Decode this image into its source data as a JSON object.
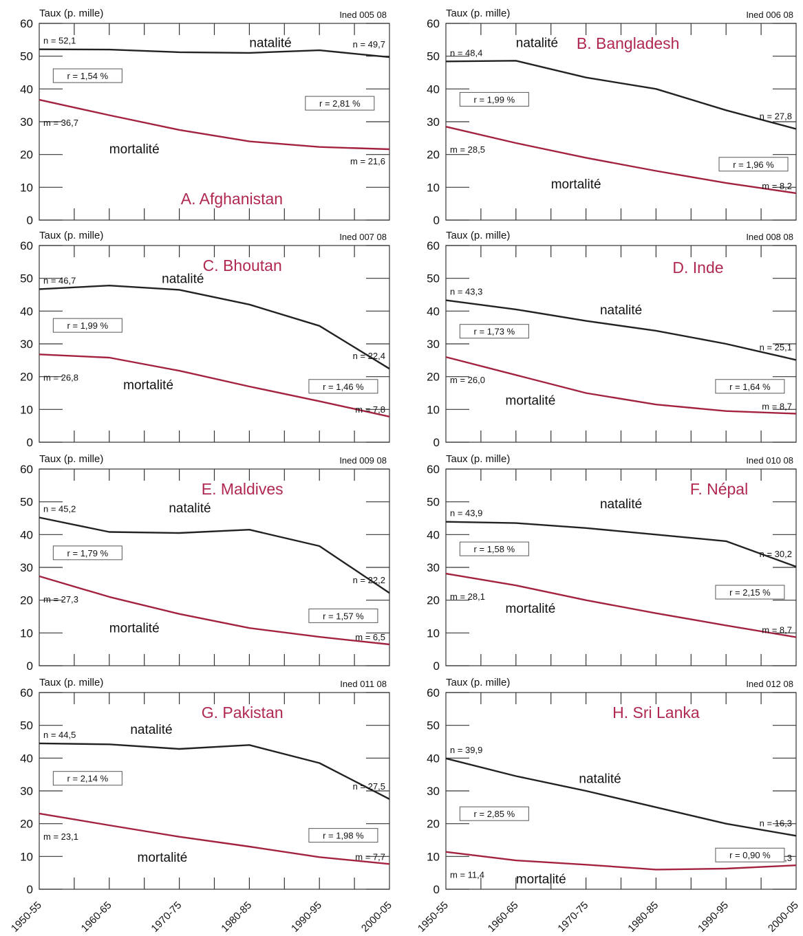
{
  "chart_data": [
    {
      "type": "line",
      "title": "A. Afghanistan",
      "ylabel": "Taux (p. mille)",
      "source": "Ined 005 08",
      "categories": [
        "1950-55",
        "1960-65",
        "1970-75",
        "1980-85",
        "1990-95",
        "2000-05"
      ],
      "ylim": [
        0,
        60
      ],
      "yticks": [
        0,
        10,
        20,
        30,
        40,
        50,
        60
      ],
      "series": [
        {
          "name": "natalité",
          "values": [
            52.1,
            52.0,
            51.2,
            51.0,
            51.8,
            49.7
          ],
          "color": "#222222"
        },
        {
          "name": "mortalité",
          "values": [
            36.7,
            32.0,
            27.5,
            24.0,
            22.3,
            21.6
          ],
          "color": "#a3223f"
        }
      ],
      "annotations": {
        "n_start": "n = 52,1",
        "n_end": "n = 49,7",
        "m_start": "m = 36,7",
        "m_end": "m = 21,6",
        "r_left": "r = 1,54 %",
        "r_right": "r = 2,81 %"
      }
    },
    {
      "type": "line",
      "title": "B. Bangladesh",
      "ylabel": "Taux (p. mille)",
      "source": "Ined 006 08",
      "categories": [
        "1950-55",
        "1960-65",
        "1970-75",
        "1980-85",
        "1990-95",
        "2000-05"
      ],
      "ylim": [
        0,
        60
      ],
      "yticks": [
        0,
        10,
        20,
        30,
        40,
        50,
        60
      ],
      "series": [
        {
          "name": "natalité",
          "values": [
            48.4,
            48.6,
            43.5,
            40.0,
            33.5,
            27.8
          ],
          "color": "#222222"
        },
        {
          "name": "mortalité",
          "values": [
            28.5,
            23.5,
            19.0,
            15.0,
            11.3,
            8.2
          ],
          "color": "#a3223f"
        }
      ],
      "annotations": {
        "n_start": "n = 48,4",
        "n_end": "n = 27,8",
        "m_start": "m = 28,5",
        "m_end": "m = 8,2",
        "r_left": "r = 1,99 %",
        "r_right": "r = 1,96 %"
      }
    },
    {
      "type": "line",
      "title": "C. Bhoutan",
      "ylabel": "Taux (p. mille)",
      "source": "Ined 007 08",
      "categories": [
        "1950-55",
        "1960-65",
        "1970-75",
        "1980-85",
        "1990-95",
        "2000-05"
      ],
      "ylim": [
        0,
        60
      ],
      "yticks": [
        0,
        10,
        20,
        30,
        40,
        50,
        60
      ],
      "series": [
        {
          "name": "natalité",
          "values": [
            46.7,
            47.8,
            46.5,
            42.0,
            35.5,
            22.4
          ],
          "color": "#222222"
        },
        {
          "name": "mortalité",
          "values": [
            26.8,
            25.8,
            21.8,
            17.0,
            12.5,
            7.8
          ],
          "color": "#a3223f"
        }
      ],
      "annotations": {
        "n_start": "n = 46,7",
        "n_end": "n = 22,4",
        "m_start": "m = 26,8",
        "m_end": "m = 7,8",
        "r_left": "r = 1,99 %",
        "r_right": "r = 1,46 %"
      }
    },
    {
      "type": "line",
      "title": "D. Inde",
      "ylabel": "Taux (p. mille)",
      "source": "Ined 008 08",
      "categories": [
        "1950-55",
        "1960-65",
        "1970-75",
        "1980-85",
        "1990-95",
        "2000-05"
      ],
      "ylim": [
        0,
        60
      ],
      "yticks": [
        0,
        10,
        20,
        30,
        40,
        50,
        60
      ],
      "series": [
        {
          "name": "natalité",
          "values": [
            43.3,
            40.5,
            37.0,
            34.0,
            30.0,
            25.1
          ],
          "color": "#222222"
        },
        {
          "name": "mortalité",
          "values": [
            26.0,
            20.5,
            15.0,
            11.5,
            9.5,
            8.7
          ],
          "color": "#a3223f"
        }
      ],
      "annotations": {
        "n_start": "n = 43,3",
        "n_end": "n = 25,1",
        "m_start": "m = 26,0",
        "m_end": "m = 8,7",
        "r_left": "r = 1,73 %",
        "r_right": "r = 1,64 %"
      }
    },
    {
      "type": "line",
      "title": "E. Maldives",
      "ylabel": "Taux (p. mille)",
      "source": "Ined 009 08",
      "categories": [
        "1950-55",
        "1960-65",
        "1970-75",
        "1980-85",
        "1990-95",
        "2000-05"
      ],
      "ylim": [
        0,
        60
      ],
      "yticks": [
        0,
        10,
        20,
        30,
        40,
        50,
        60
      ],
      "series": [
        {
          "name": "natalité",
          "values": [
            45.2,
            40.8,
            40.5,
            41.5,
            36.5,
            22.2
          ],
          "color": "#222222"
        },
        {
          "name": "mortalité",
          "values": [
            27.3,
            21.0,
            15.8,
            11.5,
            8.8,
            6.5
          ],
          "color": "#a3223f"
        }
      ],
      "annotations": {
        "n_start": "n = 45,2",
        "n_end": "n = 22,2",
        "m_start": "m = 27,3",
        "m_end": "m = 6,5",
        "r_left": "r = 1,79 %",
        "r_right": "r = 1,57 %"
      }
    },
    {
      "type": "line",
      "title": "F. Népal",
      "ylabel": "Taux (p. mille)",
      "source": "Ined 010 08",
      "categories": [
        "1950-55",
        "1960-65",
        "1970-75",
        "1980-85",
        "1990-95",
        "2000-05"
      ],
      "ylim": [
        0,
        60
      ],
      "yticks": [
        0,
        10,
        20,
        30,
        40,
        50,
        60
      ],
      "series": [
        {
          "name": "natalité",
          "values": [
            43.9,
            43.5,
            42.0,
            40.0,
            38.0,
            30.2
          ],
          "color": "#222222"
        },
        {
          "name": "mortalité",
          "values": [
            28.1,
            24.5,
            20.0,
            16.0,
            12.3,
            8.7
          ],
          "color": "#a3223f"
        }
      ],
      "annotations": {
        "n_start": "n = 43,9",
        "n_end": "n = 30,2",
        "m_start": "m = 28,1",
        "m_end": "m = 8,7",
        "r_left": "r = 1,58 %",
        "r_right": "r = 2,15 %"
      }
    },
    {
      "type": "line",
      "title": "G. Pakistan",
      "ylabel": "Taux (p. mille)",
      "source": "Ined 011 08",
      "categories": [
        "1950-55",
        "1960-65",
        "1970-75",
        "1980-85",
        "1990-95",
        "2000-05"
      ],
      "ylim": [
        0,
        60
      ],
      "yticks": [
        0,
        10,
        20,
        30,
        40,
        50,
        60
      ],
      "series": [
        {
          "name": "natalité",
          "values": [
            44.5,
            44.2,
            42.8,
            44.0,
            38.5,
            27.5
          ],
          "color": "#222222"
        },
        {
          "name": "mortalité",
          "values": [
            23.1,
            19.5,
            16.0,
            13.0,
            9.8,
            7.7
          ],
          "color": "#a3223f"
        }
      ],
      "annotations": {
        "n_start": "n = 44,5",
        "n_end": "n = 27,5",
        "m_start": "m = 23,1",
        "m_end": "m = 7,7",
        "r_left": "r = 2,14 %",
        "r_right": "r = 1,98 %"
      }
    },
    {
      "type": "line",
      "title": "H. Sri Lanka",
      "ylabel": "Taux (p. mille)",
      "source": "Ined 012 08",
      "categories": [
        "1950-55",
        "1960-65",
        "1970-75",
        "1980-85",
        "1990-95",
        "2000-05"
      ],
      "ylim": [
        0,
        60
      ],
      "yticks": [
        0,
        10,
        20,
        30,
        40,
        50,
        60
      ],
      "series": [
        {
          "name": "natalité",
          "values": [
            39.9,
            34.5,
            30.0,
            25.0,
            20.0,
            16.3
          ],
          "color": "#222222"
        },
        {
          "name": "mortalité",
          "values": [
            11.4,
            8.8,
            7.5,
            6.0,
            6.3,
            7.3
          ],
          "color": "#a3223f"
        }
      ],
      "annotations": {
        "n_start": "n = 39,9",
        "n_end": "n = 16,3",
        "m_start": "m = 11,4",
        "m_end": "m = 7,3",
        "r_left": "r = 2,85 %",
        "r_right": "r = 0,90 %"
      }
    }
  ]
}
